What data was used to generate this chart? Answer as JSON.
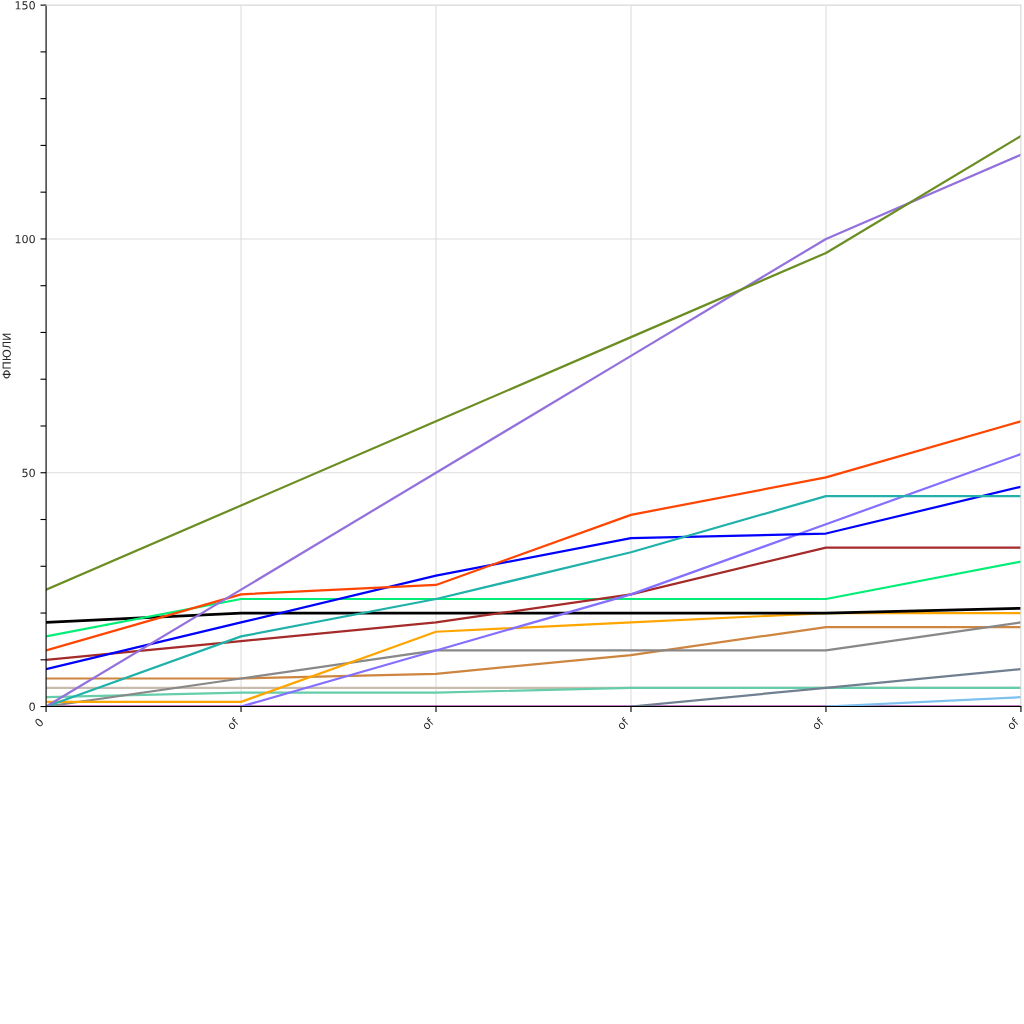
{
  "chart_data": {
    "type": "line",
    "ylabel": "ФПЮЛИ",
    "categories": [
      "0",
      "of",
      "of",
      "of",
      "of",
      "of"
    ],
    "ylim": [
      0,
      150
    ],
    "yticks": [
      0,
      {
        "value": 10,
        "label": null
      },
      {
        "value": 20,
        "label": null
      },
      {
        "value": 30,
        "label": null
      },
      {
        "value": 40,
        "label": null
      },
      50,
      {
        "value": 60,
        "label": null
      },
      {
        "value": 70,
        "label": null
      },
      {
        "value": 80,
        "label": null
      },
      {
        "value": 90,
        "label": null
      },
      100,
      {
        "value": 110,
        "label": null
      },
      {
        "value": 120,
        "label": null
      },
      {
        "value": 130,
        "label": null
      },
      {
        "value": 140,
        "label": null
      },
      150
    ],
    "grid": true,
    "marker": "none",
    "line_style": "solid",
    "series": [
      {
        "color": "#800080",
        "values": [
          0,
          0,
          0,
          0,
          0,
          0
        ]
      },
      {
        "color": "#c8bcae",
        "values": [
          4,
          4,
          4,
          4,
          4,
          4
        ]
      },
      {
        "color": "#66cdaa",
        "values": [
          2,
          3,
          3,
          4,
          4,
          4
        ]
      },
      {
        "color": "#cd853f",
        "values": [
          6,
          6,
          7,
          11,
          17,
          17
        ]
      },
      {
        "color": "#888888",
        "values": [
          0,
          6,
          12,
          12,
          12,
          18
        ]
      },
      {
        "color": "#ffa500",
        "values": [
          1,
          1,
          16,
          18,
          20,
          20
        ]
      },
      {
        "color": "#000000",
        "values": [
          18,
          20,
          20,
          20,
          20,
          21
        ]
      },
      {
        "color": "#00ee76",
        "values": [
          15,
          23,
          23,
          23,
          23,
          31
        ]
      },
      {
        "color": "#a52a2a",
        "values": [
          10,
          14,
          18,
          24,
          34,
          34
        ]
      },
      {
        "color": "#8470ff",
        "values": [
          null,
          0,
          12,
          24,
          39,
          54
        ]
      },
      {
        "color": "#0000ff",
        "values": [
          8,
          18,
          28,
          36,
          37,
          47
        ]
      },
      {
        "color": "#20b2aa",
        "values": [
          0,
          15,
          23,
          33,
          45,
          45
        ]
      },
      {
        "color": "#ff4500",
        "values": [
          12,
          24,
          26,
          41,
          49,
          61
        ]
      },
      {
        "color": "#708090",
        "values": [
          null,
          null,
          null,
          0,
          4,
          8
        ]
      },
      {
        "color": "#7ec0ee",
        "values": [
          null,
          null,
          null,
          null,
          0,
          2
        ]
      },
      {
        "color": "#9370db",
        "values": [
          0,
          25,
          50,
          75,
          100,
          118
        ]
      },
      {
        "color": "#6b8e23",
        "values": [
          25,
          43,
          61,
          79,
          97,
          122
        ]
      }
    ]
  }
}
